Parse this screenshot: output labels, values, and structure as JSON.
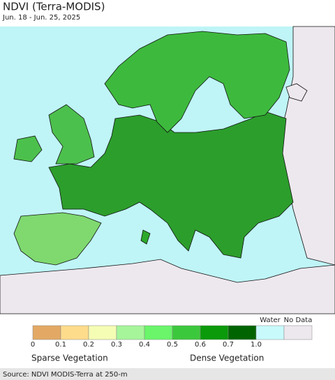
{
  "header": {
    "title": "NDVI (Terra-MODIS)",
    "subtitle": "Jun. 18 - Jun. 25, 2025"
  },
  "legend": {
    "colors": [
      "#e3a964",
      "#fddc8c",
      "#f5fcb4",
      "#a6f59a",
      "#6af56a",
      "#3cc83c",
      "#0a9a0a",
      "#006400",
      "#c8fafc",
      "#ede8ee"
    ],
    "ticks": [
      "0",
      "0.1",
      "0.2",
      "0.3",
      "0.4",
      "0.5",
      "0.6",
      "0.7",
      "1.0"
    ],
    "water_label": "Water",
    "nodata_label": "No Data",
    "low_label": "Sparse Vegetation",
    "high_label": "Dense Vegetation"
  },
  "footer": {
    "source": "Source: NDVI MODIS-Terra at 250-m"
  }
}
